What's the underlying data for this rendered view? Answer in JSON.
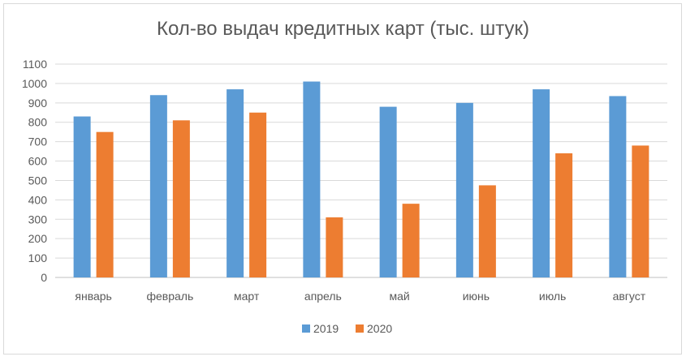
{
  "chart_data": {
    "type": "bar",
    "title": "Кол-во выдач кредитных карт (тыс. штук)",
    "categories": [
      "январь",
      "февраль",
      "март",
      "апрель",
      "май",
      "июнь",
      "июль",
      "август"
    ],
    "series": [
      {
        "name": "2019",
        "color": "#5b9bd5",
        "values": [
          830,
          940,
          970,
          1010,
          880,
          900,
          970,
          935
        ]
      },
      {
        "name": "2020",
        "color": "#ed7d31",
        "values": [
          750,
          810,
          850,
          310,
          380,
          475,
          640,
          680
        ]
      }
    ],
    "y_ticks": [
      "0",
      "100",
      "200",
      "300",
      "400",
      "500",
      "600",
      "700",
      "800",
      "900",
      "1000",
      "1100"
    ],
    "ylim": [
      0,
      1100
    ],
    "grid": true,
    "legend_position": "bottom"
  }
}
